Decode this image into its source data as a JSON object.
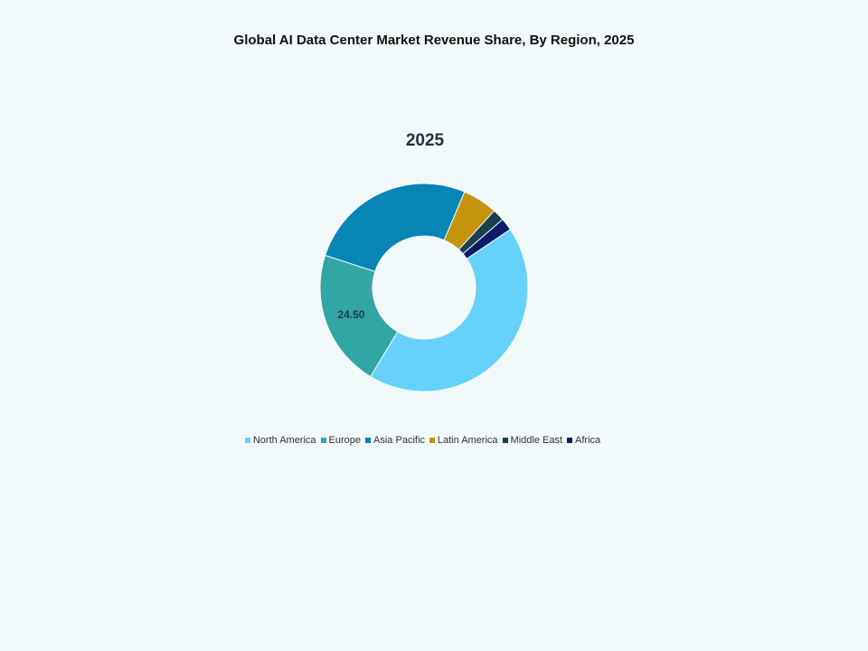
{
  "chart_data": {
    "type": "pie",
    "variant": "donut",
    "title": "Global AI Data Center Market Revenue Share, By Region, 2025",
    "subtitle": "2025",
    "categories": [
      "North America",
      "Europe",
      "Asia Pacific",
      "Latin America",
      "Middle East",
      "Africa"
    ],
    "values": [
      49.3,
      24.5,
      30.2,
      6.2,
      2.1,
      2.2
    ],
    "colors": [
      "#66d1fb",
      "#31a6a4",
      "#0785b5",
      "#c4940c",
      "#1a3f4f",
      "#0e1a6b"
    ],
    "data_labels": [
      {
        "category": "Europe",
        "text": "24.50"
      }
    ],
    "legend_position": "bottom",
    "start_angle_deg": 56,
    "order_clockwise": [
      "North America",
      "Europe",
      "Asia Pacific",
      "Latin America",
      "Middle East",
      "Africa"
    ]
  },
  "header": {
    "title": "Global AI Data Center Market Revenue Share, By Region, 2025",
    "subtitle": "2025"
  },
  "legend": [
    {
      "label": "North America",
      "color": "#66d1fb"
    },
    {
      "label": "Europe",
      "color": "#31a6a4"
    },
    {
      "label": "Asia Pacific",
      "color": "#0785b5"
    },
    {
      "label": "Latin America",
      "color": "#c4940c"
    },
    {
      "label": "Middle East",
      "color": "#1a3f4f"
    },
    {
      "label": "Africa",
      "color": "#0e1a6b"
    }
  ]
}
